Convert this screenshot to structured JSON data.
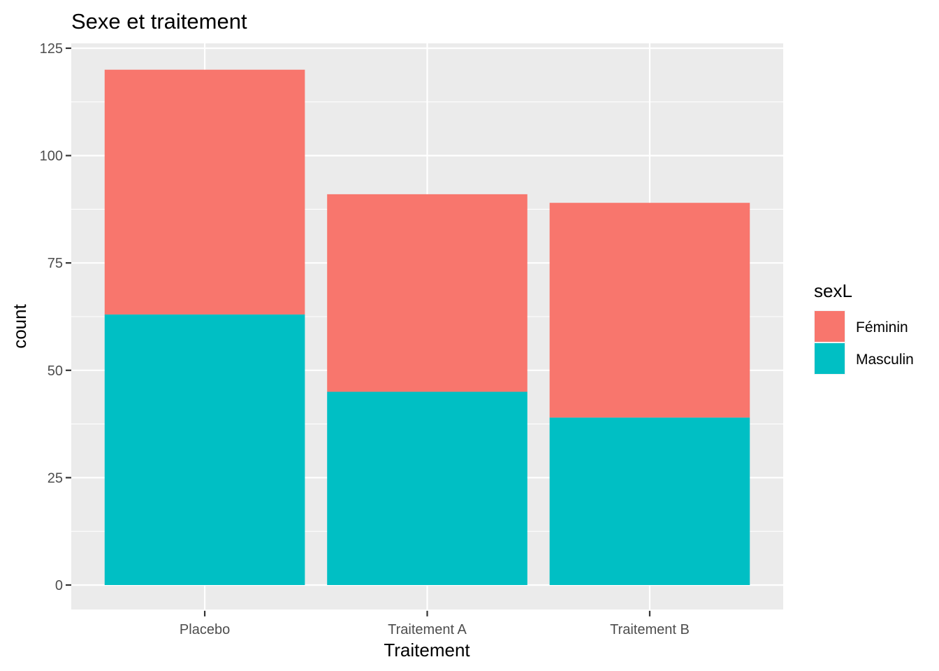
{
  "chart_data": {
    "type": "bar",
    "stacked": true,
    "title": "Sexe et traitement",
    "xlabel": "Traitement",
    "ylabel": "count",
    "categories": [
      "Placebo",
      "Traitement A",
      "Traitement B"
    ],
    "series": [
      {
        "name": "Féminin",
        "values": [
          57,
          46,
          50
        ],
        "color": "#F8766D"
      },
      {
        "name": "Masculin",
        "values": [
          63,
          45,
          39
        ],
        "color": "#00BFC4"
      }
    ],
    "ylim": [
      -6,
      125
    ],
    "yticks": [
      0,
      25,
      50,
      75,
      100,
      125
    ],
    "grid": true,
    "panel_background": "#EBEBEB",
    "grid_color": "#FFFFFF",
    "legend": {
      "title": "sexL",
      "placement": "right"
    }
  }
}
